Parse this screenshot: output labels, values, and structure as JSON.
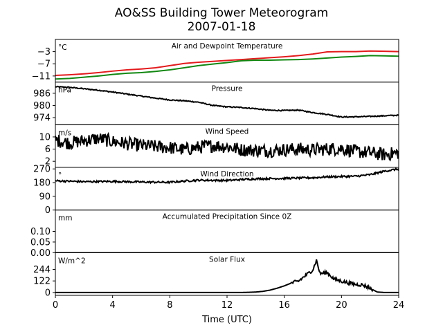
{
  "figure": {
    "title_line1": "AO&SS Building Tower Meteorogram",
    "title_line2": "2007-01-18",
    "xlabel": "Time (UTC)",
    "xlim": [
      0,
      24
    ],
    "xticks": [
      0,
      4,
      8,
      12,
      16,
      20,
      24
    ],
    "colors": {
      "temperature": "#e41a1c",
      "dewpoint": "#118811",
      "line": "#000000"
    }
  },
  "chart_data": [
    {
      "id": "temperature",
      "type": "line",
      "title": "Air and Dewpoint Temperature",
      "unit": "°C",
      "ylim": [
        -13,
        1
      ],
      "yticks": [
        -11,
        -7,
        -3
      ],
      "series": [
        {
          "key": "air",
          "color": "#e41a1c",
          "points": [
            [
              0,
              -10.8
            ],
            [
              1,
              -10.6
            ],
            [
              2,
              -10.3
            ],
            [
              3,
              -9.9
            ],
            [
              4,
              -9.4
            ],
            [
              5,
              -9.0
            ],
            [
              6,
              -8.7
            ],
            [
              7,
              -8.3
            ],
            [
              8,
              -7.6
            ],
            [
              9,
              -6.9
            ],
            [
              10,
              -6.5
            ],
            [
              11,
              -6.2
            ],
            [
              12,
              -5.9
            ],
            [
              13,
              -5.6
            ],
            [
              14,
              -5.3
            ],
            [
              15,
              -5.0
            ],
            [
              16,
              -4.7
            ],
            [
              17,
              -4.3
            ],
            [
              18,
              -3.8
            ],
            [
              19,
              -3.1
            ],
            [
              20,
              -3.0
            ],
            [
              21,
              -3.0
            ],
            [
              22,
              -2.8
            ],
            [
              23,
              -2.9
            ],
            [
              24,
              -3.0
            ]
          ]
        },
        {
          "key": "dewpoint",
          "color": "#118811",
          "points": [
            [
              0,
              -12.0
            ],
            [
              1,
              -11.8
            ],
            [
              2,
              -11.4
            ],
            [
              3,
              -11.0
            ],
            [
              4,
              -10.5
            ],
            [
              5,
              -10.1
            ],
            [
              6,
              -9.9
            ],
            [
              7,
              -9.5
            ],
            [
              8,
              -9.0
            ],
            [
              9,
              -8.3
            ],
            [
              10,
              -7.6
            ],
            [
              11,
              -7.1
            ],
            [
              12,
              -6.6
            ],
            [
              13,
              -6.0
            ],
            [
              14,
              -5.8
            ],
            [
              15,
              -5.8
            ],
            [
              16,
              -5.7
            ],
            [
              17,
              -5.6
            ],
            [
              18,
              -5.4
            ],
            [
              19,
              -5.1
            ],
            [
              20,
              -4.8
            ],
            [
              21,
              -4.6
            ],
            [
              22,
              -4.3
            ],
            [
              23,
              -4.4
            ],
            [
              24,
              -4.5
            ]
          ]
        }
      ]
    },
    {
      "id": "pressure",
      "type": "line",
      "title": "Pressure",
      "unit": "hPa",
      "ylim": [
        970.5,
        991.5
      ],
      "yticks": [
        974,
        980,
        986
      ],
      "series": [
        {
          "key": "pressure",
          "color": "#000000",
          "noise": 0.25,
          "points": [
            [
              0,
              989.2
            ],
            [
              1,
              988.9
            ],
            [
              2,
              988.2
            ],
            [
              3,
              987.5
            ],
            [
              4,
              986.6
            ],
            [
              5,
              985.6
            ],
            [
              6,
              984.6
            ],
            [
              7,
              983.6
            ],
            [
              8,
              982.7
            ],
            [
              9,
              982.3
            ],
            [
              10,
              981.6
            ],
            [
              11,
              980.0
            ],
            [
              12,
              979.3
            ],
            [
              13,
              979.0
            ],
            [
              14,
              978.4
            ],
            [
              15,
              977.6
            ],
            [
              16,
              977.5
            ],
            [
              17,
              977.7
            ],
            [
              18,
              976.5
            ],
            [
              19,
              975.6
            ],
            [
              20,
              974.3
            ],
            [
              21,
              974.4
            ],
            [
              22,
              974.6
            ],
            [
              23,
              974.9
            ],
            [
              24,
              975.2
            ]
          ]
        }
      ]
    },
    {
      "id": "wind_speed",
      "type": "line",
      "title": "Wind Speed",
      "unit": "m/s",
      "ylim": [
        0,
        14
      ],
      "yticks": [
        2,
        6,
        10
      ],
      "series": [
        {
          "key": "speed",
          "color": "#000000",
          "noise": 2.2,
          "points": [
            [
              0,
              9.0
            ],
            [
              1,
              8.0
            ],
            [
              2,
              8.8
            ],
            [
              3,
              9.5
            ],
            [
              4,
              8.5
            ],
            [
              5,
              7.8
            ],
            [
              6,
              7.2
            ],
            [
              7,
              6.8
            ],
            [
              8,
              6.5
            ],
            [
              9,
              5.8
            ],
            [
              10,
              6.6
            ],
            [
              11,
              7.2
            ],
            [
              12,
              6.8
            ],
            [
              13,
              5.8
            ],
            [
              14,
              5.6
            ],
            [
              15,
              5.5
            ],
            [
              16,
              5.8
            ],
            [
              17,
              6.0
            ],
            [
              18,
              5.8
            ],
            [
              19,
              6.0
            ],
            [
              20,
              6.2
            ],
            [
              21,
              5.2
            ],
            [
              22,
              4.8
            ],
            [
              23,
              4.2
            ],
            [
              24,
              4.8
            ]
          ]
        }
      ]
    },
    {
      "id": "wind_direction",
      "type": "line",
      "title": "Wind Direction",
      "unit": "°",
      "ylim": [
        0,
        280
      ],
      "yticks": [
        0,
        90,
        180,
        270
      ],
      "series": [
        {
          "key": "direction",
          "color": "#000000",
          "noise": 6,
          "points": [
            [
              0,
              192
            ],
            [
              2,
              186
            ],
            [
              4,
              188
            ],
            [
              6,
              184
            ],
            [
              8,
              182
            ],
            [
              9,
              190
            ],
            [
              10,
              196
            ],
            [
              12,
              194
            ],
            [
              13,
              200
            ],
            [
              14,
              205
            ],
            [
              16,
              208
            ],
            [
              18,
              212
            ],
            [
              19,
              218
            ],
            [
              20,
              220
            ],
            [
              21,
              222
            ],
            [
              22,
              232
            ],
            [
              23,
              255
            ],
            [
              24,
              270
            ]
          ]
        }
      ]
    },
    {
      "id": "precip",
      "type": "line",
      "title": "Accumulated Precipitation Since 0Z",
      "unit": "mm",
      "ylim": [
        0,
        0.2
      ],
      "yticks": [
        0.0,
        0.05,
        0.1
      ],
      "ytick_labels": [
        "0.00",
        "0.05",
        "0.10"
      ],
      "series": [
        {
          "key": "precip",
          "color": "#000000",
          "points": [
            [
              0,
              0
            ],
            [
              24,
              0
            ]
          ]
        }
      ]
    },
    {
      "id": "solar",
      "type": "line",
      "title": "Solar Flux",
      "unit": "W/m^2",
      "ylim": [
        -30,
        420
      ],
      "yticks": [
        0,
        122,
        244
      ],
      "series": [
        {
          "key": "solar",
          "color": "#000000",
          "noise": 18,
          "noise_from": 16.5,
          "noise_to": 22.2,
          "points": [
            [
              0,
              0
            ],
            [
              13,
              0
            ],
            [
              13.5,
              2
            ],
            [
              14,
              5
            ],
            [
              14.5,
              12
            ],
            [
              15,
              25
            ],
            [
              15.5,
              45
            ],
            [
              16,
              70
            ],
            [
              16.5,
              100
            ],
            [
              17,
              120
            ],
            [
              17.5,
              180
            ],
            [
              18,
              240
            ],
            [
              18.25,
              340
            ],
            [
              18.5,
              200
            ],
            [
              19,
              210
            ],
            [
              19.5,
              140
            ],
            [
              20,
              120
            ],
            [
              20.5,
              100
            ],
            [
              21,
              85
            ],
            [
              21.5,
              80
            ],
            [
              22,
              45
            ],
            [
              22.5,
              5
            ],
            [
              23,
              0
            ],
            [
              24,
              0
            ]
          ]
        }
      ]
    }
  ]
}
